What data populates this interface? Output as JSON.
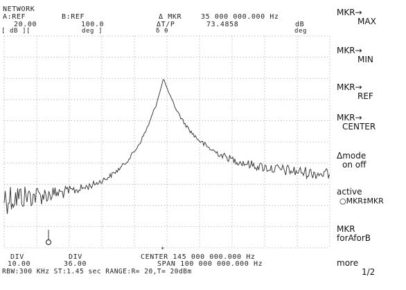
{
  "header": {
    "mode": "NETWORK",
    "a_ref": "A:REF",
    "b_ref": "B:REF",
    "delta_mkr": "Δ MKR",
    "mkr_freq": "35 000 000.000 Hz",
    "a_ref_val": "20.00",
    "b_ref_val": "100.0",
    "delta_tp": "ΔT/P",
    "delta_val": "73.4858",
    "delta_unit": "dB",
    "a_unit": "[ dB ][",
    "b_unit": "deg ]",
    "phase_label": "δ θ",
    "deg_unit": "deg"
  },
  "footer": {
    "a_div_label": "DIV",
    "a_div_val": "10.00",
    "b_div_label": "DIV",
    "b_div_val": "36.00",
    "center": "CENTER 145 000 000.000 Hz",
    "span": "SPAN 100 000 000.000 Hz",
    "status": "RBW:300 KHz ST:1.45 sec RANGE:R= 20,T= 20dBm"
  },
  "softkeys": [
    {
      "line1": "MKR→",
      "line2": "MAX"
    },
    {
      "line1": "MKR→",
      "line2": "MIN"
    },
    {
      "line1": "MKR→",
      "line2": "REF"
    },
    {
      "line1": "MKR→",
      "line2": "CENTER"
    },
    {
      "line1": "Δmode",
      "line2": "on off"
    },
    {
      "line1": "active",
      "line2": "○MKR‡MKR"
    },
    {
      "line1": "MKR",
      "line2": "forAforB"
    },
    {
      "line1": "more",
      "line2": "1/2"
    }
  ],
  "colors": {
    "trace": "#3a3a3a",
    "grid": "#9a9a9a",
    "text": "#222222",
    "background": "#ffffff"
  }
}
